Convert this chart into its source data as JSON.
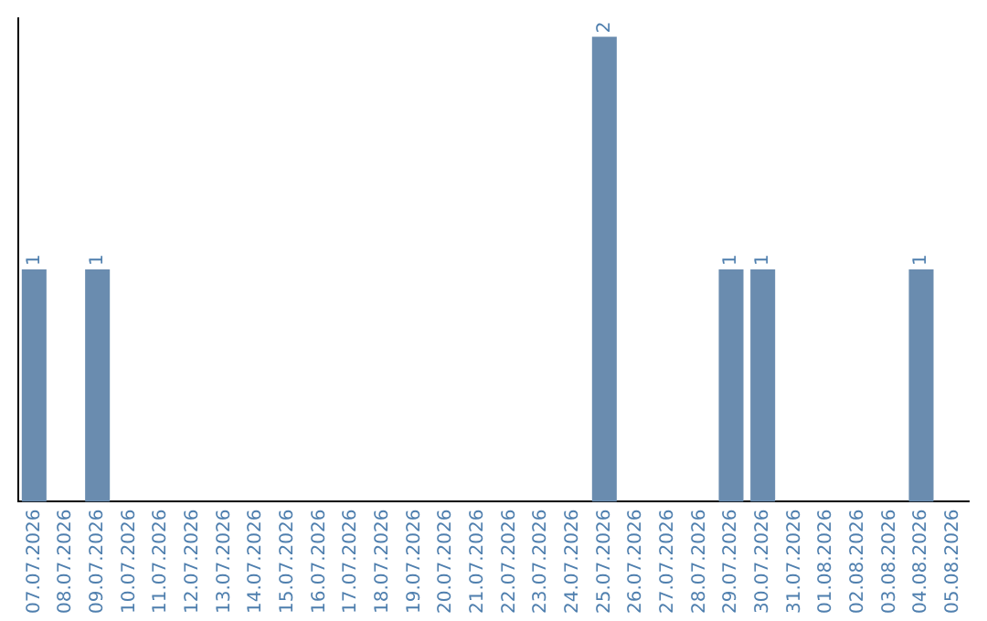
{
  "chart_data": {
    "type": "bar",
    "categories": [
      "07.07.2026",
      "08.07.2026",
      "09.07.2026",
      "10.07.2026",
      "11.07.2026",
      "12.07.2026",
      "13.07.2026",
      "14.07.2026",
      "15.07.2026",
      "16.07.2026",
      "17.07.2026",
      "18.07.2026",
      "19.07.2026",
      "20.07.2026",
      "21.07.2026",
      "22.07.2026",
      "23.07.2026",
      "24.07.2026",
      "25.07.2026",
      "26.07.2026",
      "27.07.2026",
      "28.07.2026",
      "29.07.2026",
      "30.07.2026",
      "31.07.2026",
      "01.08.2026",
      "02.08.2026",
      "03.08.2026",
      "04.08.2026",
      "05.08.2026"
    ],
    "values": [
      1,
      0,
      1,
      0,
      0,
      0,
      0,
      0,
      0,
      0,
      0,
      0,
      0,
      0,
      0,
      0,
      0,
      0,
      2,
      0,
      0,
      0,
      1,
      1,
      0,
      0,
      0,
      0,
      1,
      0
    ],
    "value_labels": [
      "1",
      null,
      "1",
      null,
      null,
      null,
      null,
      null,
      null,
      null,
      null,
      null,
      null,
      null,
      null,
      null,
      null,
      null,
      "2",
      null,
      null,
      null,
      "1",
      "1",
      null,
      null,
      null,
      null,
      "1",
      null
    ],
    "color": "#6a8caf",
    "grid": false,
    "legend": false,
    "tick_labels": "x"
  }
}
